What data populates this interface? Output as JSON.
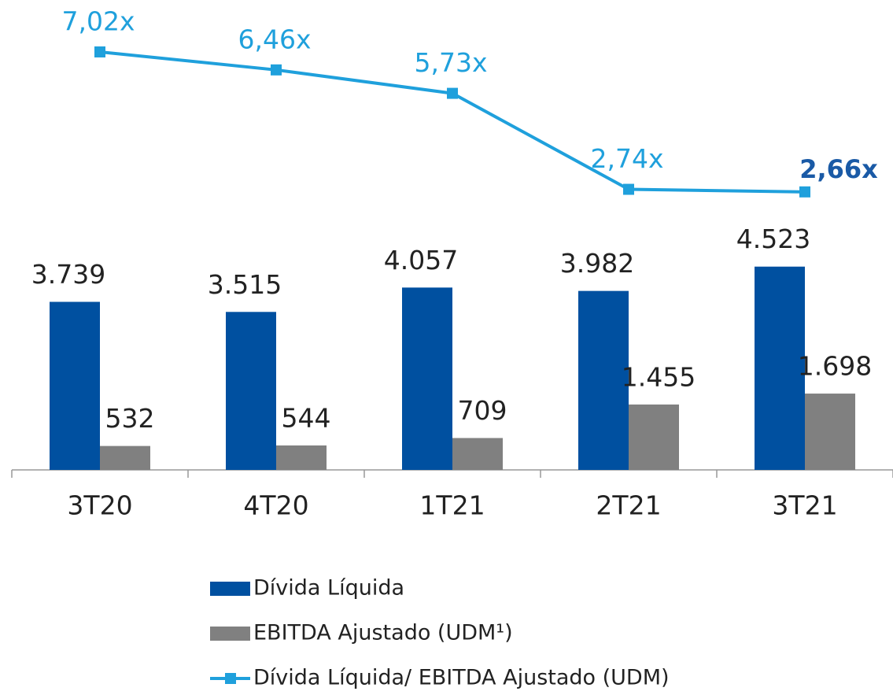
{
  "chart_data": {
    "type": "bar",
    "categories": [
      "3T20",
      "4T20",
      "1T21",
      "2T21",
      "3T21"
    ],
    "series": [
      {
        "name": "Dívida Líquida",
        "color": "#0050a0",
        "values": [
          3739,
          3515,
          4057,
          3982,
          4523
        ],
        "value_labels": [
          "3.739",
          "3.515",
          "4.057",
          "3.982",
          "4.523"
        ]
      },
      {
        "name": "EBITDA Ajustado (UDM¹)",
        "color": "#808080",
        "values": [
          532,
          544,
          709,
          1455,
          1698
        ],
        "value_labels": [
          "532",
          "544",
          "709",
          "1.455",
          "1.698"
        ]
      },
      {
        "name": "Dívida Líquida/ EBITDA Ajustado (UDM)",
        "type": "line",
        "axis": "y2",
        "color": "#1fa0dc",
        "values": [
          7.02,
          6.46,
          5.73,
          2.74,
          2.66
        ],
        "value_labels": [
          "7,02x",
          "6,46x",
          "5,73x",
          "2,74x",
          "2,66x"
        ]
      }
    ],
    "ylim": [
      0,
      10000
    ],
    "y2lim": [
      -6,
      8
    ],
    "legend": "bottom"
  }
}
